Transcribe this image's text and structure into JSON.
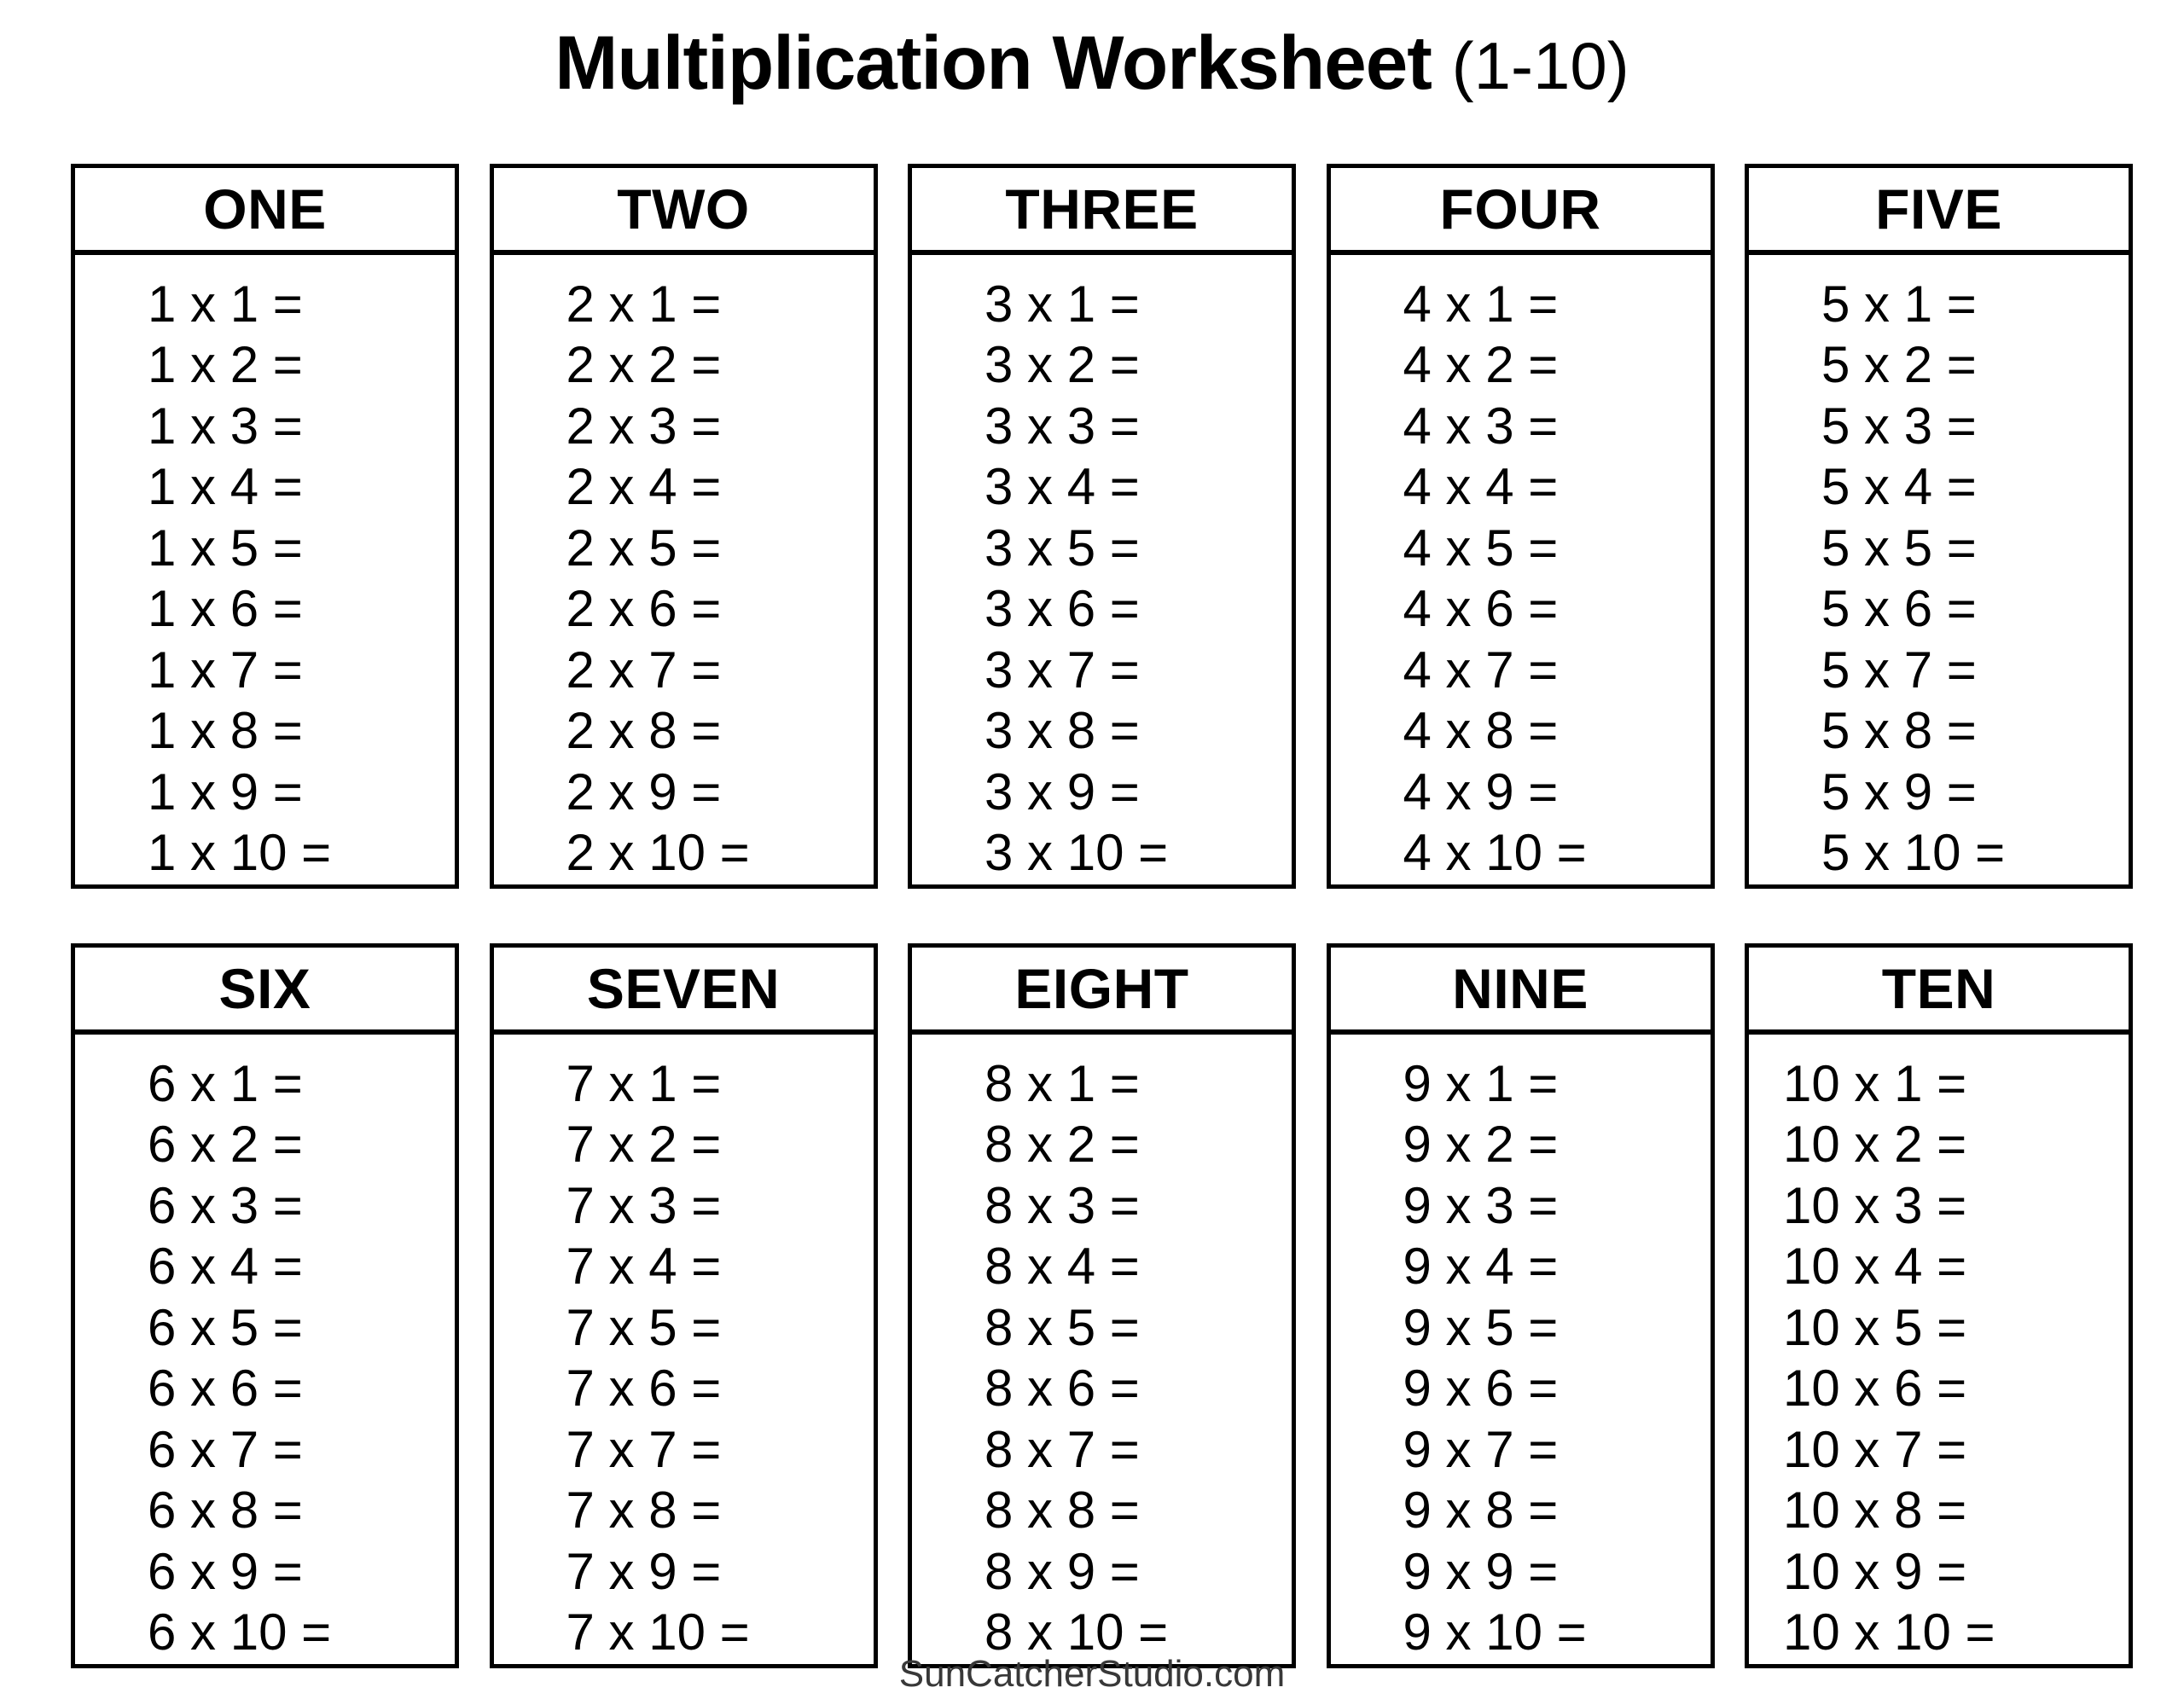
{
  "page": {
    "title": "Multiplication Worksheet",
    "title_suffix": "(1-10)",
    "footer": "SunCatcherStudio.com",
    "colors": {
      "background": "#ffffff",
      "text": "#000000",
      "border": "#000000",
      "footer_text": "#383838"
    }
  },
  "worksheet": {
    "range_label": "1-10",
    "operator": "x",
    "tables": [
      {
        "header": "ONE",
        "multiplier": 1,
        "rows": [
          "1 x 1 =",
          "1 x 2 =",
          "1 x 3 =",
          "1 x 4 =",
          "1 x 5 =",
          "1 x 6 =",
          "1 x 7 =",
          "1 x 8 =",
          "1 x 9 =",
          "1 x 10 ="
        ]
      },
      {
        "header": "TWO",
        "multiplier": 2,
        "rows": [
          "2 x 1 =",
          "2 x 2 =",
          "2 x 3 =",
          "2 x 4 =",
          "2 x 5 =",
          "2 x 6 =",
          "2 x 7 =",
          "2 x 8 =",
          "2 x 9 =",
          "2 x 10 ="
        ]
      },
      {
        "header": "THREE",
        "multiplier": 3,
        "rows": [
          "3 x 1 =",
          "3 x 2 =",
          "3 x 3 =",
          "3 x 4 =",
          "3 x 5 =",
          "3 x 6 =",
          "3 x 7 =",
          "3 x 8 =",
          "3 x 9 =",
          "3 x 10 ="
        ]
      },
      {
        "header": "FOUR",
        "multiplier": 4,
        "rows": [
          "4 x 1 =",
          "4 x 2 =",
          "4 x 3 =",
          "4 x 4 =",
          "4 x 5 =",
          "4 x 6 =",
          "4 x 7 =",
          "4 x 8 =",
          "4 x 9 =",
          "4 x 10 ="
        ]
      },
      {
        "header": "FIVE",
        "multiplier": 5,
        "rows": [
          "5 x 1 =",
          "5 x 2 =",
          "5 x 3 =",
          "5 x 4 =",
          "5 x 5 =",
          "5 x 6 =",
          "5 x 7 =",
          "5 x 8 =",
          "5 x 9 =",
          "5 x 10 ="
        ]
      },
      {
        "header": "SIX",
        "multiplier": 6,
        "rows": [
          "6 x 1 =",
          "6 x 2 =",
          "6 x 3 =",
          "6 x 4 =",
          "6 x 5 =",
          "6 x 6 =",
          "6 x 7 =",
          "6 x 8 =",
          "6 x 9 =",
          "6 x 10 ="
        ]
      },
      {
        "header": "SEVEN",
        "multiplier": 7,
        "rows": [
          "7 x 1 =",
          "7 x 2 =",
          "7 x 3 =",
          "7 x 4 =",
          "7 x 5 =",
          "7 x 6 =",
          "7 x 7 =",
          "7 x 8 =",
          "7 x 9 =",
          "7 x 10 ="
        ]
      },
      {
        "header": "EIGHT",
        "multiplier": 8,
        "rows": [
          "8 x 1 =",
          "8 x 2 =",
          "8 x 3 =",
          "8 x 4 =",
          "8 x 5 =",
          "8 x 6 =",
          "8 x 7 =",
          "8 x 8 =",
          "8 x 9 =",
          "8 x 10 ="
        ]
      },
      {
        "header": "NINE",
        "multiplier": 9,
        "rows": [
          "9 x 1 =",
          "9 x 2 =",
          "9 x 3 =",
          "9 x 4 =",
          "9 x 5 =",
          "9 x 6 =",
          "9 x 7 =",
          "9 x 8 =",
          "9 x 9 =",
          "9 x 10 ="
        ]
      },
      {
        "header": "TEN",
        "multiplier": 10,
        "rows": [
          "10 x 1 =",
          "10 x 2 =",
          "10 x 3 =",
          "10 x 4 =",
          "10 x 5 =",
          "10 x 6 =",
          "10 x 7 =",
          "10 x 8 =",
          "10 x 9 =",
          "10 x 10 ="
        ]
      }
    ]
  }
}
